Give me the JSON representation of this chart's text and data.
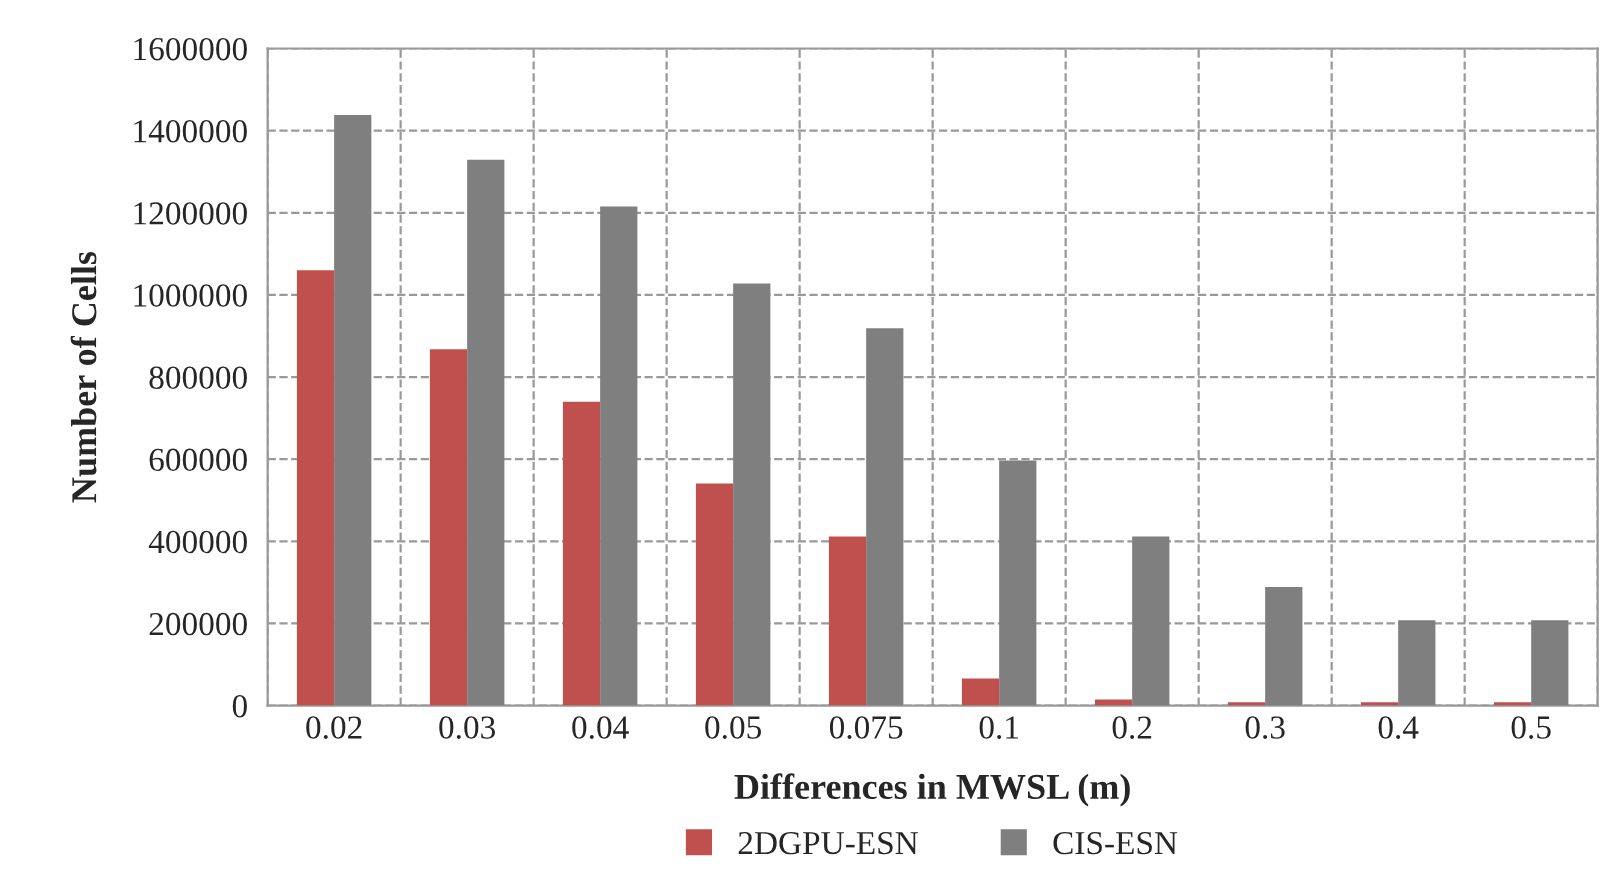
{
  "chart_data": {
    "type": "bar",
    "xlabel": "Differences in MWSL (m)",
    "ylabel": "Number of Cells",
    "categories": [
      "0.02",
      "0.03",
      "0.04",
      "0.05",
      "0.075",
      "0.1",
      "0.2",
      "0.3",
      "0.4",
      "0.5"
    ],
    "series": [
      {
        "name": "2DGPU-ESN",
        "color": "#c0504d",
        "values": [
          1060000,
          868000,
          740000,
          541000,
          412000,
          66000,
          15000,
          8000,
          8000,
          8000
        ]
      },
      {
        "name": "CIS-ESN",
        "color": "#7f7f7f",
        "values": [
          1438000,
          1329000,
          1215000,
          1028000,
          919000,
          597000,
          412000,
          289000,
          208000,
          208000
        ]
      }
    ],
    "ylim": [
      0,
      1600000
    ],
    "yticks": [
      0,
      200000,
      400000,
      600000,
      800000,
      1000000,
      1200000,
      1400000,
      1600000
    ],
    "grid": true,
    "legend": "bottom"
  }
}
